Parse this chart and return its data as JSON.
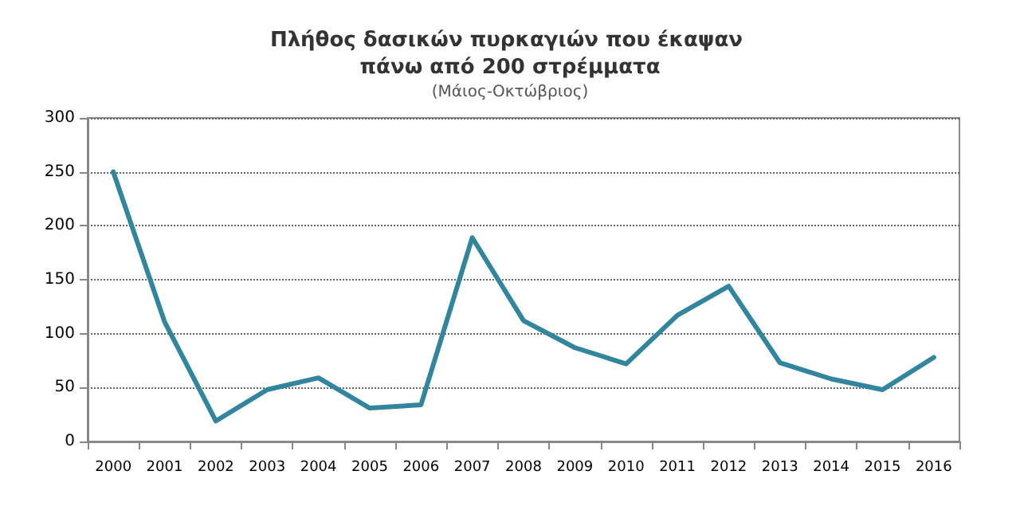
{
  "chart_data": {
    "type": "line",
    "title": "Πλήθος δασικών πυρκαγιών που έκαψαν πάνω από 200 στρέμματα",
    "subtitle": "(Μάιος-Οκτώβριος)",
    "categories": [
      "2000",
      "2001",
      "2002",
      "2003",
      "2004",
      "2005",
      "2006",
      "2007",
      "2008",
      "2009",
      "2010",
      "2011",
      "2012",
      "2013",
      "2014",
      "2015",
      "2016"
    ],
    "series": [
      {
        "color": "#31859c",
        "values": [
          250,
          111,
          19,
          48,
          59,
          31,
          34,
          189,
          112,
          87,
          72,
          117,
          144,
          73,
          58,
          48,
          78
        ]
      }
    ],
    "ylim": [
      0,
      300
    ],
    "yticks": [
      0,
      50,
      100,
      150,
      200,
      250,
      300
    ],
    "grid": "y",
    "marker": "none",
    "line_style": "solid"
  }
}
